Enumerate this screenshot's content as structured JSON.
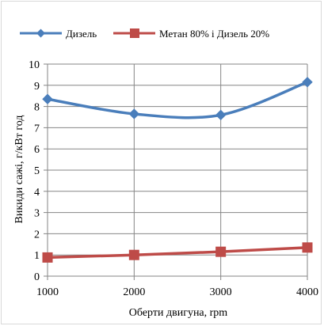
{
  "chart_data": {
    "type": "line",
    "xlabel": "Оберти двигуна, rpm",
    "ylabel": "Викиди сажі, г/кВт год",
    "x": [
      1000,
      2000,
      3000,
      4000
    ],
    "xlim": [
      1000,
      4000
    ],
    "ylim": [
      0,
      10
    ],
    "xticks": [
      1000,
      2000,
      3000,
      4000
    ],
    "yticks": [
      0,
      1,
      2,
      3,
      4,
      5,
      6,
      7,
      8,
      9,
      10
    ],
    "grid": true,
    "legend_position": "top",
    "series": [
      {
        "name": "Дизель",
        "values": [
          8.35,
          7.65,
          7.6,
          9.15
        ],
        "color": "#4a7ebb",
        "marker": "diamond",
        "smooth": true
      },
      {
        "name": "Метан 80% і Дизель 20%",
        "values": [
          0.88,
          1.0,
          1.15,
          1.35
        ],
        "color": "#be4b48",
        "marker": "square",
        "smooth": false
      }
    ]
  }
}
